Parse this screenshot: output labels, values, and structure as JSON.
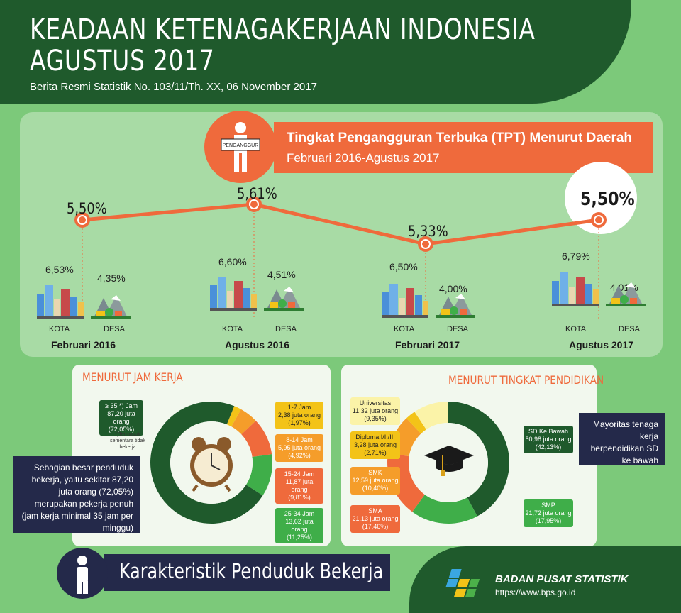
{
  "header": {
    "title_line1": "KEADAAN KETENAGAKERJAAN INDONESIA",
    "title_line2": "AGUSTUS 2017",
    "subtitle": "Berita Resmi Statistik No. 103/11/Th. XX, 06 November 2017"
  },
  "tpt": {
    "icon_sign": "PENGANGGUR",
    "title": "Tingkat Pengangguran Terbuka (TPT) Menurut Daerah",
    "period": "Februari 2016-Agustus 2017",
    "kota_label": "KOTA",
    "desa_label": "DESA"
  },
  "chart_data": [
    {
      "type": "line",
      "title": "Tingkat Pengangguran Terbuka (TPT) Menurut Daerah",
      "subtitle": "Februari 2016-Agustus 2017",
      "categories": [
        "Februari 2016",
        "Agustus 2016",
        "Februari 2017",
        "Agustus 2017"
      ],
      "series": [
        {
          "values": [
            5.5,
            5.61,
            5.33,
            5.5
          ],
          "labels": [
            "5,50%",
            "5,61%",
            "5,33%",
            "5,50%"
          ]
        },
        {
          "name": "KOTA",
          "values": [
            6.53,
            6.6,
            6.5,
            6.79
          ],
          "labels": [
            "6,53%",
            "6,60%",
            "6,50%",
            "6,79%"
          ]
        },
        {
          "name": "DESA",
          "values": [
            4.35,
            4.51,
            4.0,
            4.01
          ],
          "labels": [
            "4,35%",
            "4,51%",
            "4,00%",
            "4,01%"
          ]
        }
      ],
      "colors": {
        "line": "#ef6a3c",
        "marker": "#ef6a3c"
      }
    },
    {
      "type": "pie",
      "title": "MENURUT JAM KERJA",
      "note": "*)Termasuk sementara tidak bekerja",
      "slices": [
        {
          "label": "≥ 35 *) Jam",
          "value": 87.2,
          "value_text": "87,20 juta orang",
          "pct_text": "(72,05%)",
          "color": "#1f5a2c"
        },
        {
          "label": "1-7 Jam",
          "value": 2.38,
          "value_text": "2,38 juta orang",
          "pct_text": "(1,97%)",
          "color": "#f3c318"
        },
        {
          "label": "8-14 Jam",
          "value": 5.95,
          "value_text": "5,95 juta orang",
          "pct_text": "(4,92%)",
          "color": "#f59d2a"
        },
        {
          "label": "15-24 Jam",
          "value": 11.87,
          "value_text": "11,87 juta orang",
          "pct_text": "(9,81%)",
          "color": "#ef6a3c"
        },
        {
          "label": "25-34 Jam",
          "value": 13.62,
          "value_text": "13,62 juta orang",
          "pct_text": "(11,25%)",
          "color": "#3fae49"
        }
      ]
    },
    {
      "type": "pie",
      "title": "MENURUT TINGKAT PENDIDIKAN",
      "slices": [
        {
          "label": "SD Ke Bawah",
          "value": 50.98,
          "value_text": "50,98 juta orang",
          "pct_text": "(42,13%)",
          "color": "#1f5a2c"
        },
        {
          "label": "SMP",
          "value": 21.72,
          "value_text": "21,72 juta orang",
          "pct_text": "(17,95%)",
          "color": "#3fae49"
        },
        {
          "label": "SMA",
          "value": 21.13,
          "value_text": "21,13 juta orang",
          "pct_text": "(17,46%)",
          "color": "#ef6a3c"
        },
        {
          "label": "SMK",
          "value": 12.59,
          "value_text": "12,59 juta orang",
          "pct_text": "(10,40%)",
          "color": "#f59d2a"
        },
        {
          "label": "Diploma I/II/III",
          "value": 3.28,
          "value_text": "3,28 juta orang",
          "pct_text": "(2,71%)",
          "color": "#f3c318"
        },
        {
          "label": "Universitas",
          "value": 11.32,
          "value_text": "11,32 juta orang",
          "pct_text": "(9,35%)",
          "color": "#fbf3a8"
        }
      ]
    }
  ],
  "jam_kerja": {
    "title": "MENURUT JAM KERJA",
    "note": "*)Termasuk sementara tidak bekerja",
    "callout": "Sebagian besar penduduk bekerja, yaitu sekitar 87,20 juta orang (72,05%) merupakan pekerja penuh (jam kerja minimal 35 jam per minggu)"
  },
  "pendidikan": {
    "title": "MENURUT TINGKAT PENDIDIKAN",
    "callout": "Mayoritas tenaga kerja berpendidikan SD ke bawah"
  },
  "footer": {
    "karakteristik": "Karakteristik Penduduk Bekerja",
    "org_name": "BADAN PUSAT STATISTIK",
    "url": "https://www.bps.go.id"
  }
}
